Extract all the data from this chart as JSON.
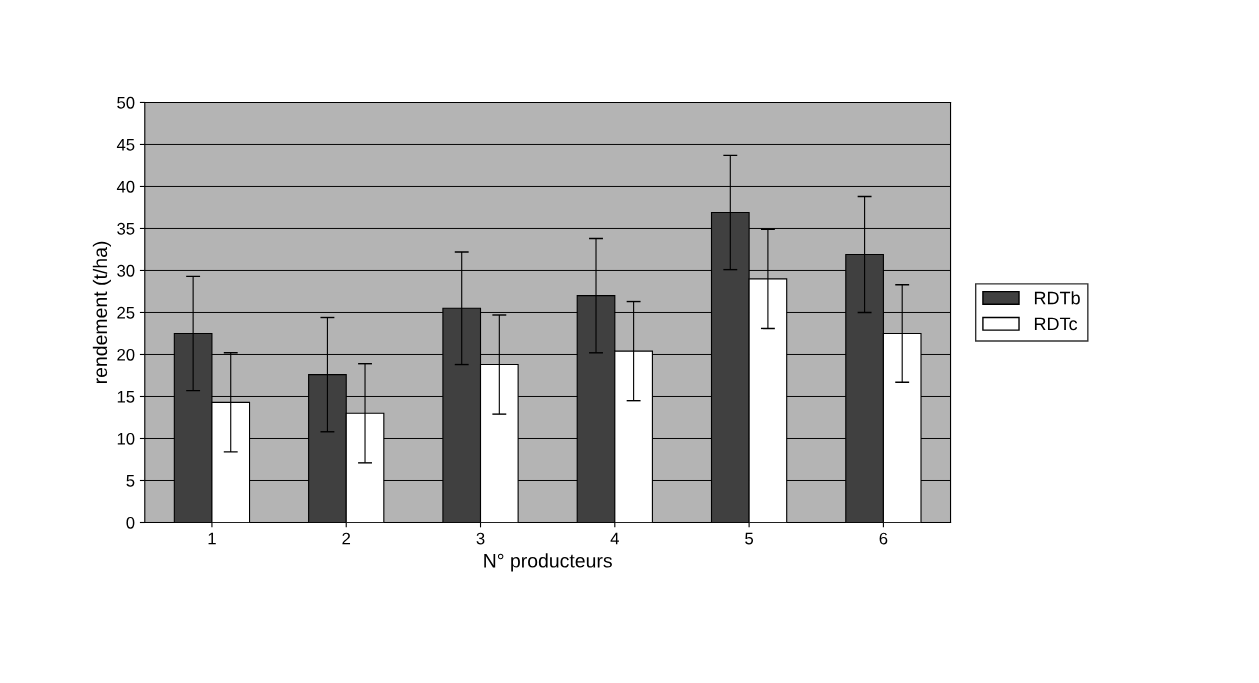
{
  "chart_data": {
    "type": "bar",
    "xlabel": "N° producteurs",
    "ylabel": "rendement (t/ha)",
    "categories": [
      "1",
      "2",
      "3",
      "4",
      "5",
      "6"
    ],
    "series": [
      {
        "name": "RDTb",
        "color": "#404040",
        "values": [
          22.5,
          17.6,
          25.5,
          27.0,
          36.9,
          31.9
        ],
        "errors": [
          6.8,
          6.8,
          6.7,
          6.8,
          6.8,
          6.9
        ]
      },
      {
        "name": "RDTc",
        "color": "#ffffff",
        "values": [
          14.3,
          13.0,
          18.8,
          20.4,
          29.0,
          22.5
        ],
        "errors": [
          5.9,
          5.9,
          5.9,
          5.9,
          5.9,
          5.8
        ]
      }
    ],
    "ylim": [
      0,
      50
    ],
    "yticks": [
      0,
      5,
      10,
      15,
      20,
      25,
      30,
      35,
      40,
      45,
      50
    ],
    "grid": "y",
    "legend": "right"
  }
}
